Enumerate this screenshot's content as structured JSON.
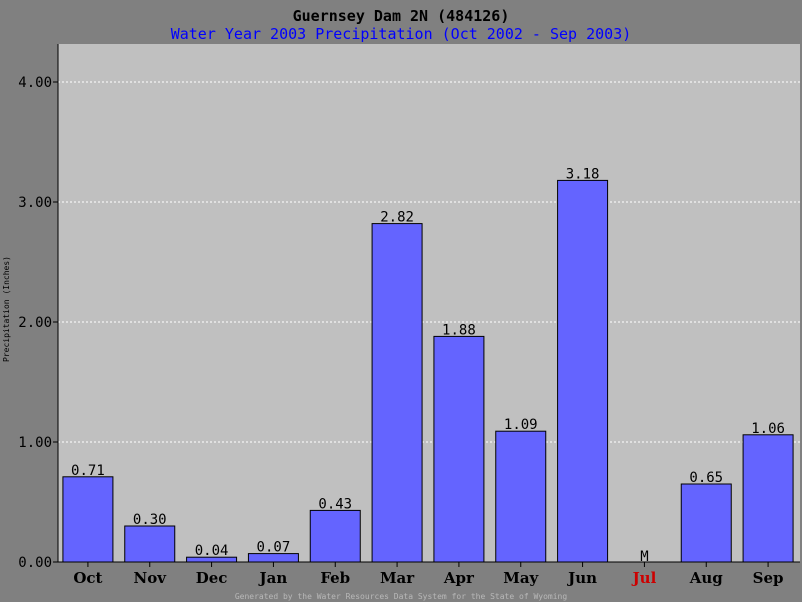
{
  "colors": {
    "background": "#808080",
    "plot_background": "#c0c0c0",
    "bar_fill": "#6464ff",
    "bar_stroke": "#000000",
    "grid": "#ffffff",
    "title": "#000000",
    "subtitle": "#0000ff",
    "missing": "#cc0000",
    "footer": "#b8b8b8"
  },
  "footer": "Generated by the Water Resources Data System for the State of Wyoming",
  "missing_marker": "M",
  "chart_data": {
    "type": "bar",
    "title": "Guernsey Dam 2N (484126)",
    "subtitle": "Water Year 2003 Precipitation (Oct 2002 - Sep 2003)",
    "xlabel": "",
    "ylabel": "Precipitation (Inches)",
    "ylim": [
      0,
      4.0
    ],
    "yticks": [
      "0.00",
      "1.00",
      "2.00",
      "3.00",
      "4.00"
    ],
    "grid": true,
    "categories": [
      "Oct",
      "Nov",
      "Dec",
      "Jan",
      "Feb",
      "Mar",
      "Apr",
      "May",
      "Jun",
      "Jul",
      "Aug",
      "Sep"
    ],
    "values": [
      0.71,
      0.3,
      0.04,
      0.07,
      0.43,
      2.82,
      1.88,
      1.09,
      3.18,
      null,
      0.65,
      1.06
    ],
    "labels": [
      "0.71",
      "0.30",
      "0.04",
      "0.07",
      "0.43",
      "2.82",
      "1.88",
      "1.09",
      "3.18",
      "M",
      "0.65",
      "1.06"
    ],
    "missing": [
      "Jul"
    ]
  }
}
